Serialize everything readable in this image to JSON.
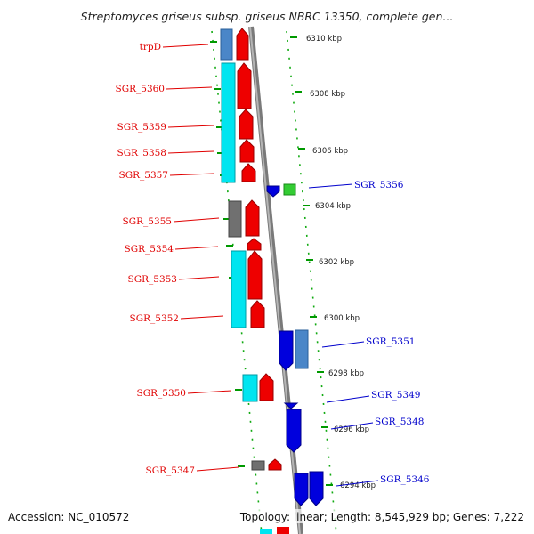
{
  "title": "Streptomyces griseus subsp. griseus NBRC 13350, complete gen...",
  "footer": {
    "accession": "Accession: NC_010572",
    "topology": "Topology: linear; Length: 8,545,929 bp; Genes: 7,222"
  },
  "kbp_labels": [
    "6310 kbp",
    "6308 kbp",
    "6306 kbp",
    "6304 kbp",
    "6302 kbp",
    "6300 kbp",
    "6298 kbp",
    "6296 kbp",
    "6294 kbp"
  ],
  "genes_left": [
    "trpD",
    "SGR_5360",
    "SGR_5359",
    "SGR_5358",
    "SGR_5357",
    "SGR_5355",
    "SGR_5354",
    "SGR_5353",
    "SGR_5352",
    "SGR_5350",
    "SGR_5347"
  ],
  "genes_right": [
    "SGR_5356",
    "SGR_5351",
    "SGR_5349",
    "SGR_5348",
    "SGR_5346"
  ],
  "colors": {
    "forward_label": "#e00000",
    "reverse_label": "#0000cc",
    "forward_gene": "#ee0000",
    "reverse_gene": "#0000dd",
    "cyan_gene": "#00e5f0",
    "steelblue_gene": "#4a86c8",
    "gray_gene": "#707070",
    "green_gene": "#33cc33",
    "axis": "#888888",
    "tick": "#009900"
  }
}
